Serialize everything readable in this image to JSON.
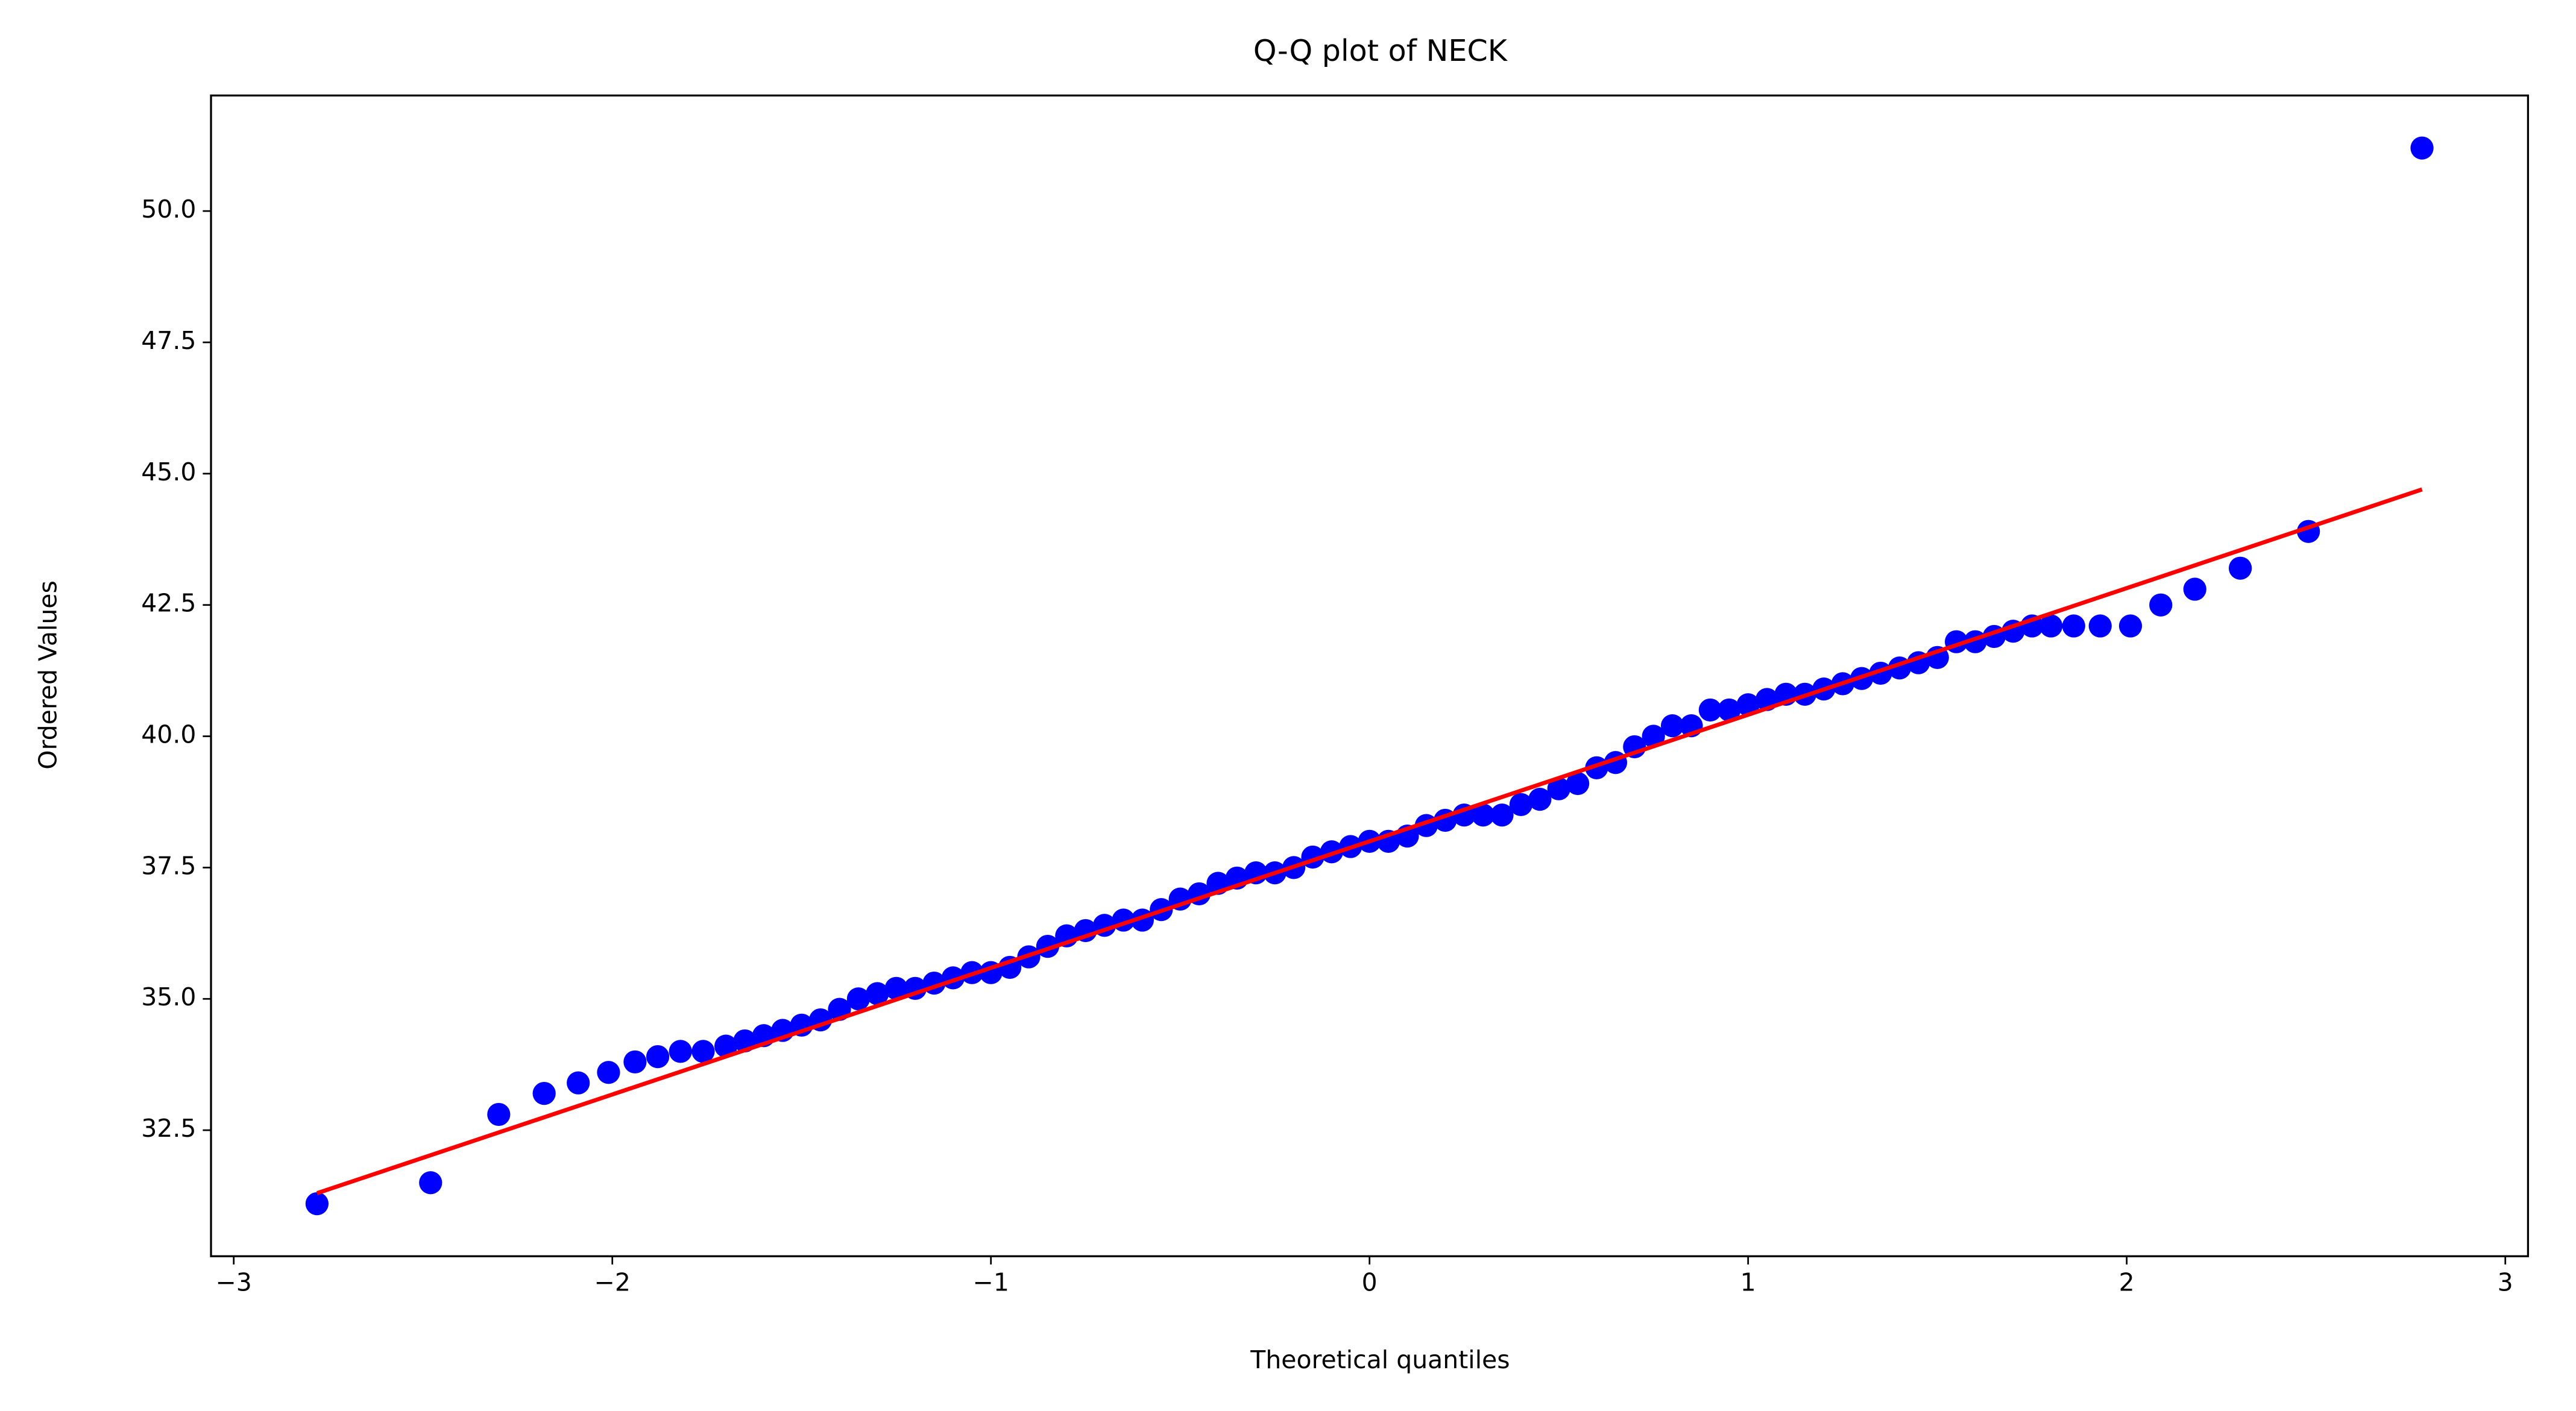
{
  "chart_data": {
    "type": "scatter",
    "title": "Q-Q plot of NECK",
    "x_label": "Theoretical quantiles",
    "y_label": "Ordered Values",
    "xlim": [
      -3.06,
      3.06
    ],
    "ylim": [
      30.1,
      52.2
    ],
    "xticks": [
      {
        "value": -3,
        "label": "−3"
      },
      {
        "value": -2,
        "label": "−2"
      },
      {
        "value": -1,
        "label": "−1"
      },
      0,
      1,
      2,
      3
    ],
    "yticks": [
      {
        "value": 32.5,
        "label": "32.5"
      },
      {
        "value": 35,
        "label": "35.0"
      },
      {
        "value": 37.5,
        "label": "37.5"
      },
      {
        "value": 40,
        "label": "40.0"
      },
      {
        "value": 42.5,
        "label": "42.5"
      },
      {
        "value": 45,
        "label": "45.0"
      },
      {
        "value": 47.5,
        "label": "47.5"
      },
      {
        "value": 50,
        "label": "50.0"
      }
    ],
    "points": {
      "color": "#0000ff",
      "x": [
        -2.78,
        -2.48,
        -2.3,
        -2.18,
        -2.09,
        -2.01,
        -1.94,
        -1.88,
        -1.82,
        -1.76,
        -1.7,
        -1.65,
        -1.6,
        -1.55,
        -1.5,
        -1.45,
        -1.4,
        -1.35,
        -1.3,
        -1.25,
        -1.2,
        -1.15,
        -1.1,
        -1.05,
        -1.0,
        -0.95,
        -0.9,
        -0.85,
        -0.8,
        -0.75,
        -0.7,
        -0.65,
        -0.6,
        -0.55,
        -0.5,
        -0.45,
        -0.4,
        -0.35,
        -0.3,
        -0.25,
        -0.2,
        -0.15,
        -0.1,
        -0.05,
        0.0,
        0.05,
        0.1,
        0.15,
        0.2,
        0.25,
        0.3,
        0.35,
        0.4,
        0.45,
        0.5,
        0.55,
        0.6,
        0.65,
        0.7,
        0.75,
        0.8,
        0.85,
        0.9,
        0.95,
        1.0,
        1.05,
        1.1,
        1.15,
        1.2,
        1.25,
        1.3,
        1.35,
        1.4,
        1.45,
        1.5,
        1.55,
        1.6,
        1.65,
        1.7,
        1.75,
        1.8,
        1.86,
        1.93,
        2.01,
        2.09,
        2.18,
        2.3,
        2.48,
        2.78
      ],
      "values": [
        31.1,
        31.5,
        32.8,
        33.2,
        33.4,
        33.6,
        33.8,
        33.9,
        34.0,
        34.0,
        34.1,
        34.2,
        34.3,
        34.4,
        34.5,
        34.6,
        34.8,
        35.0,
        35.1,
        35.2,
        35.2,
        35.3,
        35.4,
        35.5,
        35.5,
        35.6,
        35.8,
        36.0,
        36.2,
        36.3,
        36.4,
        36.5,
        36.5,
        36.7,
        36.9,
        37.0,
        37.2,
        37.3,
        37.4,
        37.4,
        37.5,
        37.7,
        37.8,
        37.9,
        38.0,
        38.0,
        38.1,
        38.3,
        38.4,
        38.5,
        38.5,
        38.5,
        38.7,
        38.8,
        39.0,
        39.1,
        39.4,
        39.5,
        39.8,
        40.0,
        40.2,
        40.2,
        40.5,
        40.5,
        40.6,
        40.7,
        40.8,
        40.8,
        40.9,
        41.0,
        41.1,
        41.2,
        41.3,
        41.4,
        41.5,
        41.8,
        41.8,
        41.9,
        42.0,
        42.1,
        42.1,
        42.1,
        42.1,
        42.1,
        42.5,
        42.8,
        43.2,
        43.9,
        51.2
      ]
    },
    "fit_line": {
      "color": "#ff0000",
      "x": [
        -2.78,
        2.78
      ],
      "values": [
        31.3,
        44.7
      ]
    }
  }
}
